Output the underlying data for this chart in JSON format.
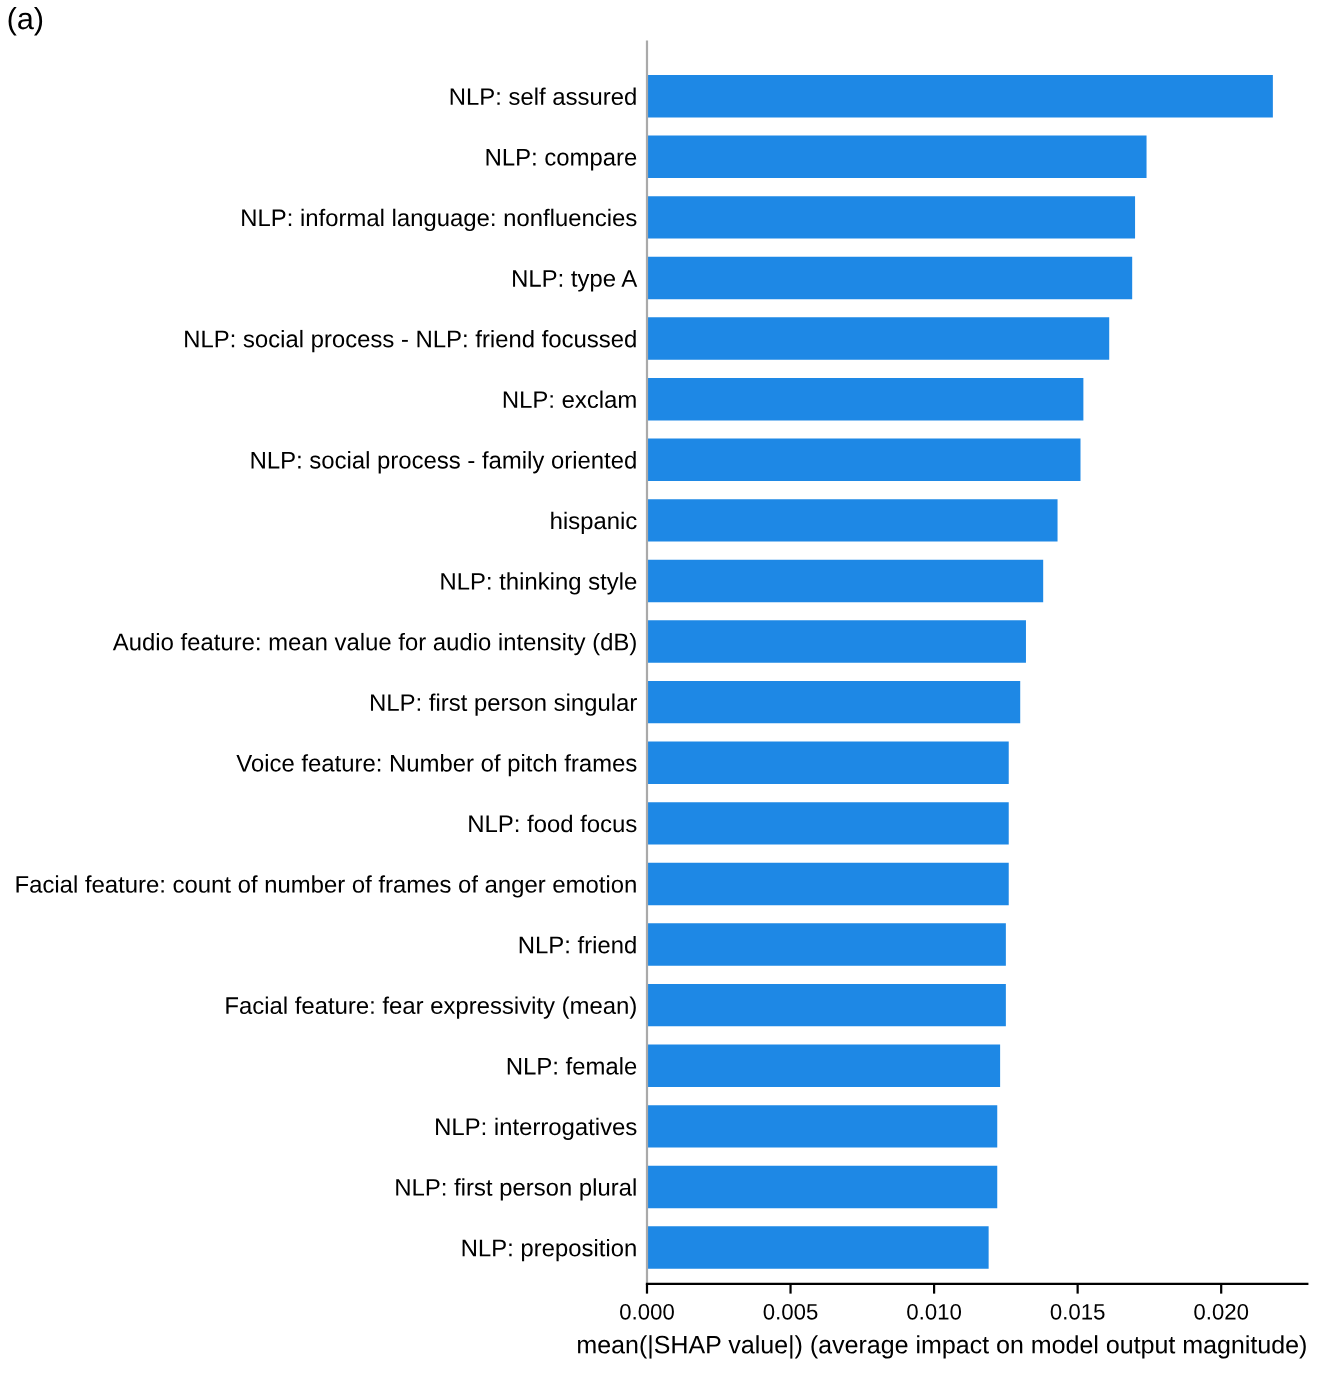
{
  "chart_data": {
    "type": "bar",
    "orientation": "horizontal",
    "xlabel": "mean(|SHAP value|) (average impact on model output magnitude)",
    "annotations": [
      "(a)"
    ],
    "categories": [
      "NLP: self assured",
      "NLP: compare",
      "NLP: informal language: nonfluencies",
      "NLP: type A",
      "NLP: social process - NLP: friend focussed",
      "NLP: exclam",
      "NLP: social process - family oriented",
      "hispanic",
      "NLP: thinking style",
      "Audio feature: mean value for audio intensity (dB)",
      "NLP: first person singular",
      "Voice feature: Number of pitch frames",
      "NLP: food focus",
      "Facial feature: count of number of frames of anger emotion",
      "NLP: friend",
      "Facial feature: fear expressivity (mean)",
      "NLP: female",
      "NLP: interrogatives",
      "NLP: first person plural",
      "NLP: preposition"
    ],
    "values": [
      0.0218,
      0.0174,
      0.017,
      0.0169,
      0.0161,
      0.0152,
      0.0151,
      0.0143,
      0.0138,
      0.0132,
      0.013,
      0.0126,
      0.0126,
      0.0126,
      0.0125,
      0.0125,
      0.0123,
      0.0122,
      0.0122,
      0.0119
    ],
    "color": "#1e88e5",
    "xlim": [
      0,
      0.023
    ],
    "xticks": [
      {
        "value": 0,
        "label": "0.000"
      },
      {
        "value": 0.005,
        "label": "0.005"
      },
      {
        "value": 0.01,
        "label": "0.010"
      },
      {
        "value": 0.015,
        "label": "0.015"
      },
      {
        "value": 0.02,
        "label": "0.020"
      }
    ],
    "grid": false
  }
}
